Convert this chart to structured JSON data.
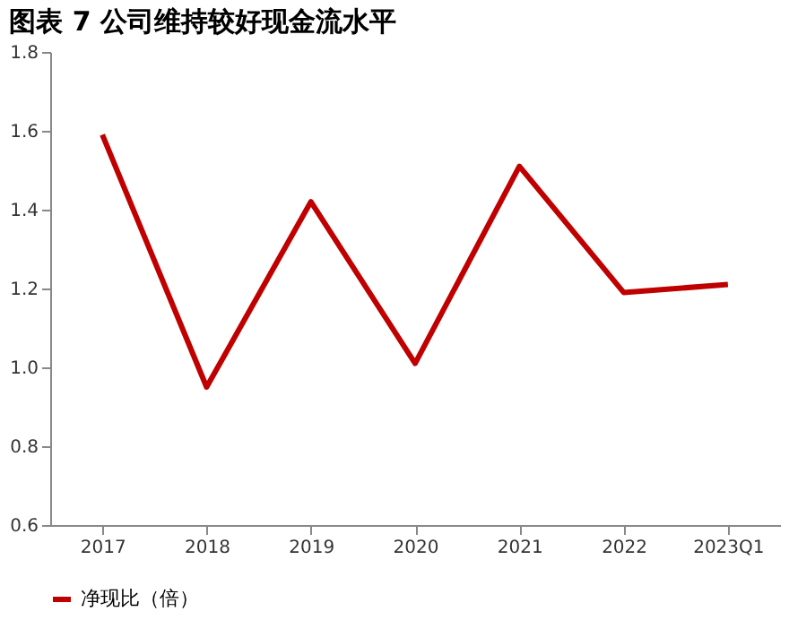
{
  "chart_data": {
    "type": "line",
    "title": "图表 7 公司维持较好现金流水平",
    "categories": [
      "2017",
      "2018",
      "2019",
      "2020",
      "2021",
      "2022",
      "2023Q1"
    ],
    "series": [
      {
        "name": "净现比（倍）",
        "color": "#c00000",
        "values": [
          1.59,
          0.95,
          1.42,
          1.01,
          1.51,
          1.19,
          1.21
        ]
      }
    ],
    "ylim": [
      0.6,
      1.8
    ],
    "yticks": [
      {
        "value": 0.6,
        "label": "0.6"
      },
      {
        "value": 0.8,
        "label": "0.8"
      },
      {
        "value": 1,
        "label": "1.0"
      },
      {
        "value": 1.2,
        "label": "1.2"
      },
      {
        "value": 1.4,
        "label": "1.4"
      },
      {
        "value": 1.6,
        "label": "1.6"
      },
      {
        "value": 1.8,
        "label": "1.8"
      }
    ],
    "grid": false,
    "legend": "bottom",
    "marker": "none",
    "line_style": "solid"
  }
}
